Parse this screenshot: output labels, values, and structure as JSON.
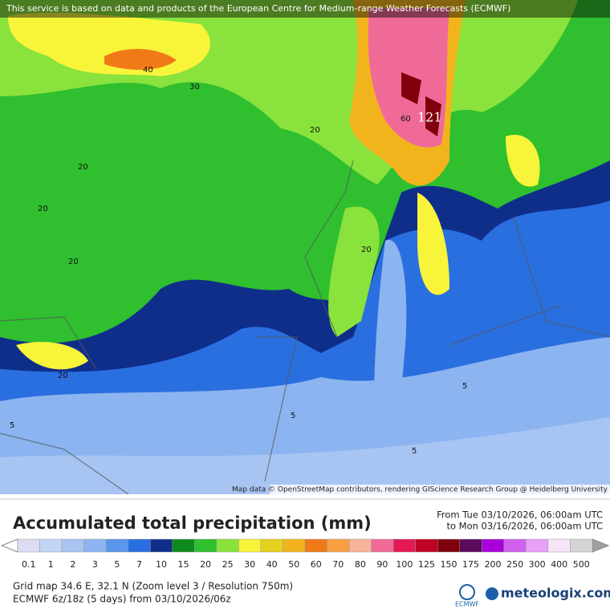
{
  "header": {
    "attribution": "This service is based on data and products of the European Centre for Medium-range Weather Forecasts (ECMWF)"
  },
  "map": {
    "labels": [
      "40",
      "30",
      "20",
      "20",
      "20",
      "20",
      "20",
      "60",
      "121",
      "20",
      "5",
      "5",
      "5",
      "5"
    ],
    "credit": "Map data © OpenStreetMap contributors, rendering GIScience Research Group @ Heidelberg University"
  },
  "legend": {
    "title": "Accumulated total precipitation (mm)",
    "from": "From Tue 03/10/2026, 06:00am UTC",
    "to": "to Mon 03/16/2026, 06:00am UTC",
    "scale": [
      0.1,
      1,
      2,
      3,
      5,
      7,
      10,
      15,
      20,
      25,
      30,
      40,
      50,
      60,
      70,
      80,
      90,
      100,
      125,
      150,
      175,
      200,
      250,
      300,
      400,
      500
    ],
    "colors": [
      "#dcdcf2",
      "#c4d4f4",
      "#a8c4f2",
      "#8cb4f0",
      "#5a96ec",
      "#2a6fe0",
      "#0f2e8a",
      "#0e8a1a",
      "#2fbf2f",
      "#8ae23c",
      "#f8f43a",
      "#e6d21e",
      "#f2b41c",
      "#f07a18",
      "#f8a040",
      "#f8b49a",
      "#f06a98",
      "#e41854",
      "#c00024",
      "#80000e",
      "#5c0a5c",
      "#a800d8",
      "#d060ee",
      "#e8a0f6",
      "#f8e4f8",
      "#d4d4d4"
    ],
    "grid": "Grid map 34.6 E, 32.1 N (Zoom level 3 / Resolution 750m)",
    "model": "ECMWF 6z/18z (5 days) from 03/10/2026/06z"
  },
  "footer": {
    "ecmwf": "ECMWF",
    "brand": "meteologix.com"
  }
}
